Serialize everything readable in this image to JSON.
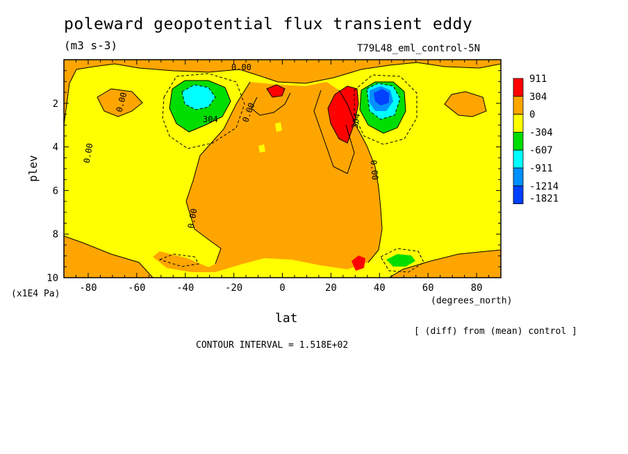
{
  "chart_data": {
    "type": "heatmap",
    "title": "poleward geopotential flux transient eddy",
    "units": "(m3 s-3)",
    "run_label": "T79L48_eml_control-5N",
    "xlabel": "lat",
    "x_units": "(degrees_north)",
    "ylabel": "plev",
    "y_units": "(x1E4 Pa)",
    "xlim": [
      -90,
      90
    ],
    "ylim": [
      0,
      10
    ],
    "y_inverted": true,
    "x_ticks": [
      -80,
      -60,
      -40,
      -20,
      0,
      20,
      40,
      60,
      80
    ],
    "y_ticks": [
      2,
      4,
      6,
      8,
      10
    ],
    "colorbar": {
      "levels": [
        "911",
        "304",
        "0",
        "-304",
        "-607",
        "-911",
        "-1214",
        "-1821"
      ],
      "colors": [
        "#ff0000",
        "#ffa500",
        "#ffff00",
        "#00dd00",
        "#00ffff",
        "#0090ff",
        "#0040ff"
      ]
    },
    "contour_labels": [
      "0.00",
      "0.00",
      "0.00",
      "0.00",
      "0.00",
      "0.00",
      "304",
      "304"
    ],
    "note": "[ (diff) from (mean) control ]",
    "contour_interval": "CONTOUR INTERVAL = 1.518E+02"
  }
}
